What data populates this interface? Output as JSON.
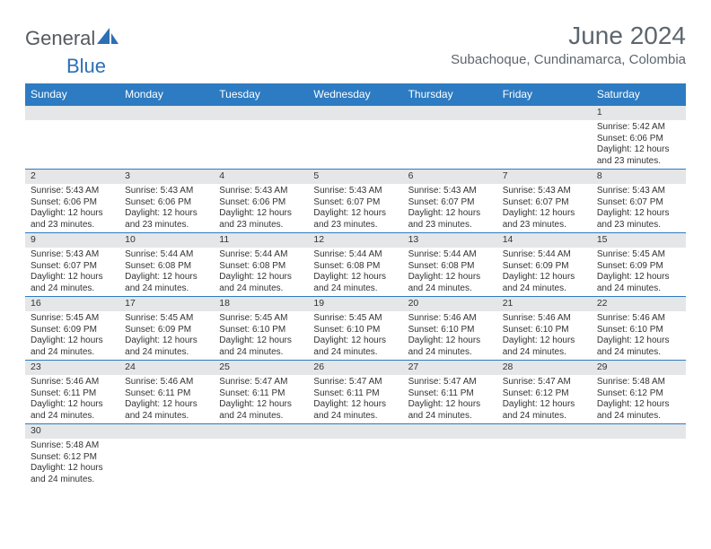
{
  "logo": {
    "part1": "General",
    "part2": "Blue"
  },
  "title": "June 2024",
  "subtitle": "Subachoque, Cundinamarca, Colombia",
  "colors": {
    "header_bg": "#2d7bc2",
    "header_fg": "#ffffff",
    "daynum_bg": "#e4e6e8",
    "cell_border": "#2d7bc2",
    "title_color": "#5d666e",
    "logo_gray": "#555a5f",
    "logo_blue": "#2d6fb5"
  },
  "weekdays": [
    "Sunday",
    "Monday",
    "Tuesday",
    "Wednesday",
    "Thursday",
    "Friday",
    "Saturday"
  ],
  "weeks": [
    [
      null,
      null,
      null,
      null,
      null,
      null,
      {
        "n": "1",
        "sr": "Sunrise: 5:42 AM",
        "ss": "Sunset: 6:06 PM",
        "d1": "Daylight: 12 hours",
        "d2": "and 23 minutes."
      }
    ],
    [
      {
        "n": "2",
        "sr": "Sunrise: 5:43 AM",
        "ss": "Sunset: 6:06 PM",
        "d1": "Daylight: 12 hours",
        "d2": "and 23 minutes."
      },
      {
        "n": "3",
        "sr": "Sunrise: 5:43 AM",
        "ss": "Sunset: 6:06 PM",
        "d1": "Daylight: 12 hours",
        "d2": "and 23 minutes."
      },
      {
        "n": "4",
        "sr": "Sunrise: 5:43 AM",
        "ss": "Sunset: 6:06 PM",
        "d1": "Daylight: 12 hours",
        "d2": "and 23 minutes."
      },
      {
        "n": "5",
        "sr": "Sunrise: 5:43 AM",
        "ss": "Sunset: 6:07 PM",
        "d1": "Daylight: 12 hours",
        "d2": "and 23 minutes."
      },
      {
        "n": "6",
        "sr": "Sunrise: 5:43 AM",
        "ss": "Sunset: 6:07 PM",
        "d1": "Daylight: 12 hours",
        "d2": "and 23 minutes."
      },
      {
        "n": "7",
        "sr": "Sunrise: 5:43 AM",
        "ss": "Sunset: 6:07 PM",
        "d1": "Daylight: 12 hours",
        "d2": "and 23 minutes."
      },
      {
        "n": "8",
        "sr": "Sunrise: 5:43 AM",
        "ss": "Sunset: 6:07 PM",
        "d1": "Daylight: 12 hours",
        "d2": "and 23 minutes."
      }
    ],
    [
      {
        "n": "9",
        "sr": "Sunrise: 5:43 AM",
        "ss": "Sunset: 6:07 PM",
        "d1": "Daylight: 12 hours",
        "d2": "and 24 minutes."
      },
      {
        "n": "10",
        "sr": "Sunrise: 5:44 AM",
        "ss": "Sunset: 6:08 PM",
        "d1": "Daylight: 12 hours",
        "d2": "and 24 minutes."
      },
      {
        "n": "11",
        "sr": "Sunrise: 5:44 AM",
        "ss": "Sunset: 6:08 PM",
        "d1": "Daylight: 12 hours",
        "d2": "and 24 minutes."
      },
      {
        "n": "12",
        "sr": "Sunrise: 5:44 AM",
        "ss": "Sunset: 6:08 PM",
        "d1": "Daylight: 12 hours",
        "d2": "and 24 minutes."
      },
      {
        "n": "13",
        "sr": "Sunrise: 5:44 AM",
        "ss": "Sunset: 6:08 PM",
        "d1": "Daylight: 12 hours",
        "d2": "and 24 minutes."
      },
      {
        "n": "14",
        "sr": "Sunrise: 5:44 AM",
        "ss": "Sunset: 6:09 PM",
        "d1": "Daylight: 12 hours",
        "d2": "and 24 minutes."
      },
      {
        "n": "15",
        "sr": "Sunrise: 5:45 AM",
        "ss": "Sunset: 6:09 PM",
        "d1": "Daylight: 12 hours",
        "d2": "and 24 minutes."
      }
    ],
    [
      {
        "n": "16",
        "sr": "Sunrise: 5:45 AM",
        "ss": "Sunset: 6:09 PM",
        "d1": "Daylight: 12 hours",
        "d2": "and 24 minutes."
      },
      {
        "n": "17",
        "sr": "Sunrise: 5:45 AM",
        "ss": "Sunset: 6:09 PM",
        "d1": "Daylight: 12 hours",
        "d2": "and 24 minutes."
      },
      {
        "n": "18",
        "sr": "Sunrise: 5:45 AM",
        "ss": "Sunset: 6:10 PM",
        "d1": "Daylight: 12 hours",
        "d2": "and 24 minutes."
      },
      {
        "n": "19",
        "sr": "Sunrise: 5:45 AM",
        "ss": "Sunset: 6:10 PM",
        "d1": "Daylight: 12 hours",
        "d2": "and 24 minutes."
      },
      {
        "n": "20",
        "sr": "Sunrise: 5:46 AM",
        "ss": "Sunset: 6:10 PM",
        "d1": "Daylight: 12 hours",
        "d2": "and 24 minutes."
      },
      {
        "n": "21",
        "sr": "Sunrise: 5:46 AM",
        "ss": "Sunset: 6:10 PM",
        "d1": "Daylight: 12 hours",
        "d2": "and 24 minutes."
      },
      {
        "n": "22",
        "sr": "Sunrise: 5:46 AM",
        "ss": "Sunset: 6:10 PM",
        "d1": "Daylight: 12 hours",
        "d2": "and 24 minutes."
      }
    ],
    [
      {
        "n": "23",
        "sr": "Sunrise: 5:46 AM",
        "ss": "Sunset: 6:11 PM",
        "d1": "Daylight: 12 hours",
        "d2": "and 24 minutes."
      },
      {
        "n": "24",
        "sr": "Sunrise: 5:46 AM",
        "ss": "Sunset: 6:11 PM",
        "d1": "Daylight: 12 hours",
        "d2": "and 24 minutes."
      },
      {
        "n": "25",
        "sr": "Sunrise: 5:47 AM",
        "ss": "Sunset: 6:11 PM",
        "d1": "Daylight: 12 hours",
        "d2": "and 24 minutes."
      },
      {
        "n": "26",
        "sr": "Sunrise: 5:47 AM",
        "ss": "Sunset: 6:11 PM",
        "d1": "Daylight: 12 hours",
        "d2": "and 24 minutes."
      },
      {
        "n": "27",
        "sr": "Sunrise: 5:47 AM",
        "ss": "Sunset: 6:11 PM",
        "d1": "Daylight: 12 hours",
        "d2": "and 24 minutes."
      },
      {
        "n": "28",
        "sr": "Sunrise: 5:47 AM",
        "ss": "Sunset: 6:12 PM",
        "d1": "Daylight: 12 hours",
        "d2": "and 24 minutes."
      },
      {
        "n": "29",
        "sr": "Sunrise: 5:48 AM",
        "ss": "Sunset: 6:12 PM",
        "d1": "Daylight: 12 hours",
        "d2": "and 24 minutes."
      }
    ],
    [
      {
        "n": "30",
        "sr": "Sunrise: 5:48 AM",
        "ss": "Sunset: 6:12 PM",
        "d1": "Daylight: 12 hours",
        "d2": "and 24 minutes."
      },
      null,
      null,
      null,
      null,
      null,
      null
    ]
  ]
}
